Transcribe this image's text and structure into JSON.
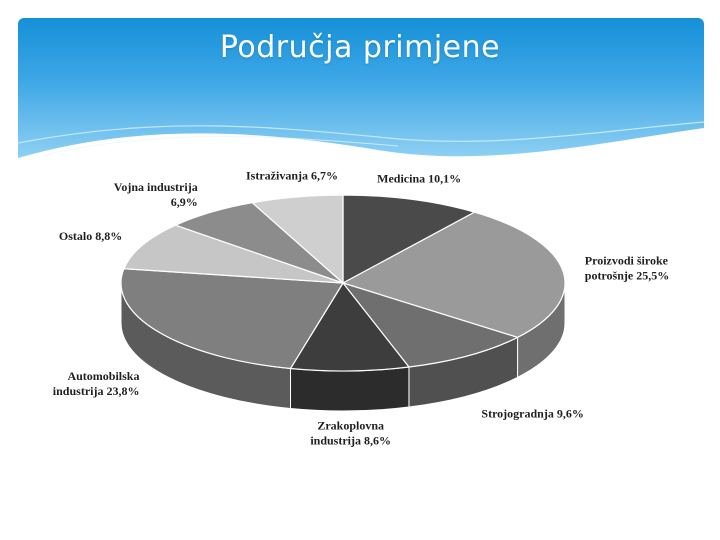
{
  "slide": {
    "title": "Područja primjene"
  },
  "colors": {
    "header": "#1590d8",
    "slices": [
      "#4a4a4a",
      "#9a9a9a",
      "#6f6f6f",
      "#3d3d3d",
      "#7f7f7f",
      "#c6c6c6",
      "#8c8c8c",
      "#cfcfcf"
    ]
  },
  "chart_data": {
    "type": "pie",
    "style": "3d",
    "slices": [
      {
        "lines": [
          "Medicina 10,1%"
        ],
        "value": 10.1
      },
      {
        "lines": [
          "Proizvodi široke",
          "potrošnje 25,5%"
        ],
        "value": 25.5
      },
      {
        "lines": [
          "Strojogradnja 9,6%"
        ],
        "value": 9.6
      },
      {
        "lines": [
          "Zrakoplovna",
          "industrija 8,6%"
        ],
        "value": 8.6
      },
      {
        "lines": [
          "Automobilska",
          "industrija 23,8%"
        ],
        "value": 23.8
      },
      {
        "lines": [
          "Ostalo 8,8%"
        ],
        "value": 8.8
      },
      {
        "lines": [
          "Vojna industrija",
          "6,9%"
        ],
        "value": 6.9
      },
      {
        "lines": [
          "Istraživanja 6,7%"
        ],
        "value": 6.7
      }
    ]
  }
}
